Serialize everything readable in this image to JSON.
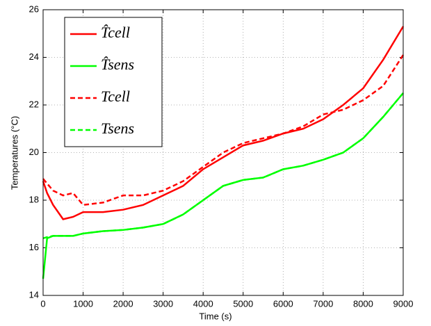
{
  "chart_data": {
    "type": "line",
    "xlabel": "Time (s)",
    "ylabel": "Temperatures (°C)",
    "x": [
      0,
      100,
      250,
      500,
      750,
      1000,
      1500,
      2000,
      2500,
      3000,
      3500,
      4000,
      4500,
      5000,
      5500,
      6000,
      6500,
      7000,
      7500,
      8000,
      8500,
      9000
    ],
    "series": [
      {
        "name": "T̂cell",
        "color": "#ff0000",
        "linestyle": "solid",
        "values": [
          18.8,
          18.3,
          17.8,
          17.2,
          17.3,
          17.5,
          17.5,
          17.6,
          17.8,
          18.2,
          18.6,
          19.3,
          19.8,
          20.3,
          20.5,
          20.8,
          21.0,
          21.4,
          22.0,
          22.7,
          23.9,
          25.3
        ]
      },
      {
        "name": "T̂sens",
        "color": "#00ff00",
        "linestyle": "solid",
        "values": [
          14.7,
          16.4,
          16.5,
          16.5,
          16.5,
          16.6,
          16.7,
          16.75,
          16.85,
          17.0,
          17.4,
          18.0,
          18.6,
          18.85,
          18.95,
          19.3,
          19.45,
          19.7,
          20.0,
          20.6,
          21.5,
          22.5
        ]
      },
      {
        "name": "Tcell",
        "color": "#ff0000",
        "linestyle": "dashed",
        "values": [
          18.9,
          18.7,
          18.4,
          18.2,
          18.3,
          17.8,
          17.9,
          18.2,
          18.2,
          18.4,
          18.8,
          19.4,
          20.0,
          20.4,
          20.6,
          20.8,
          21.1,
          21.6,
          21.8,
          22.2,
          22.8,
          24.1
        ]
      },
      {
        "name": "Tsens",
        "color": "#00ff00",
        "linestyle": "dashed",
        "values": [
          16.4,
          16.45,
          16.5,
          16.5,
          16.5,
          16.6,
          16.7,
          16.75,
          16.85,
          17.0,
          17.4,
          18.0,
          18.6,
          18.85,
          18.95,
          19.3,
          19.45,
          19.7,
          20.0,
          20.6,
          21.5,
          22.5
        ]
      }
    ],
    "xlim": [
      0,
      9000
    ],
    "xticks": [
      0,
      1000,
      2000,
      3000,
      4000,
      5000,
      6000,
      7000,
      8000,
      9000
    ],
    "ylim": [
      14,
      26
    ],
    "yticks": [
      14,
      16,
      18,
      20,
      22,
      24,
      26
    ],
    "grid": true,
    "legend": "upper-left"
  }
}
